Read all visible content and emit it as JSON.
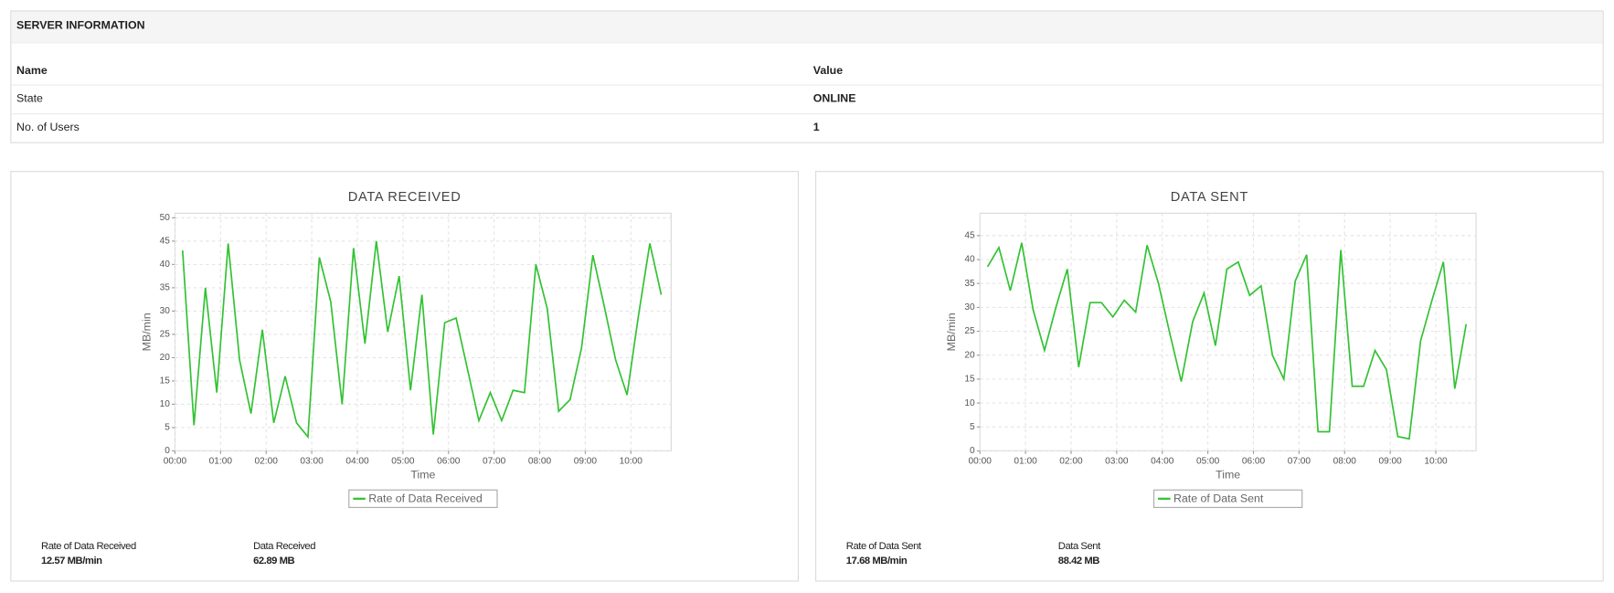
{
  "server_info": {
    "title": "SERVER INFORMATION",
    "header": [
      "Name",
      "Value"
    ],
    "rows": [
      [
        "State",
        "ONLINE"
      ],
      [
        "No. of Users",
        "1"
      ]
    ]
  },
  "chart_data": [
    {
      "type": "line",
      "title": "DATA RECEIVED",
      "x_label": "Time",
      "y_label": "MB/min",
      "x": [
        "00:10",
        "00:25",
        "00:40",
        "00:55",
        "01:10",
        "01:25",
        "01:40",
        "01:55",
        "02:10",
        "02:25",
        "02:40",
        "02:55",
        "03:10",
        "03:25",
        "03:40",
        "03:55",
        "04:10",
        "04:25",
        "04:40",
        "04:55",
        "05:10",
        "05:25",
        "05:40",
        "05:55",
        "06:10",
        "06:25",
        "06:40",
        "06:55",
        "07:10",
        "07:25",
        "07:40",
        "07:55",
        "08:10",
        "08:25",
        "08:40",
        "08:55",
        "09:10",
        "09:25",
        "09:40",
        "09:55",
        "10:10",
        "10:25",
        "10:40"
      ],
      "series": [
        {
          "name": "Rate of Data Received",
          "color": "#33c233",
          "values": [
            43,
            5.5,
            35,
            12.5,
            44.5,
            19.5,
            8,
            26,
            6,
            16,
            6,
            3,
            41.5,
            32,
            10,
            43.5,
            23,
            45,
            25.5,
            37.5,
            13,
            33.5,
            3.5,
            27.5,
            28.5,
            17.5,
            6.5,
            12.5,
            6.5,
            13,
            12.5,
            40,
            30.5,
            8.5,
            11,
            22,
            42,
            31,
            19.5,
            12,
            29,
            44.5,
            33.5
          ]
        }
      ],
      "xlim": [
        "00:00",
        "10:53"
      ],
      "xticks": [
        "00:00",
        "01:00",
        "02:00",
        "03:00",
        "04:00",
        "05:00",
        "06:00",
        "07:00",
        "08:00",
        "09:00",
        "10:00"
      ],
      "ylim": [
        0,
        51
      ],
      "yticks": [
        0,
        5,
        10,
        15,
        20,
        25,
        30,
        35,
        40,
        45,
        50
      ],
      "grid": true,
      "stats": [
        {
          "label": "Rate of Data Received",
          "value": "12.57 MB/min"
        },
        {
          "label": "Data Received",
          "value": "62.89 MB"
        }
      ]
    },
    {
      "type": "line",
      "title": "DATA SENT",
      "x_label": "Time",
      "y_label": "MB/min",
      "x": [
        "00:10",
        "00:25",
        "00:40",
        "00:55",
        "01:10",
        "01:25",
        "01:40",
        "01:55",
        "02:10",
        "02:25",
        "02:40",
        "02:55",
        "03:10",
        "03:25",
        "03:40",
        "03:55",
        "04:10",
        "04:25",
        "04:40",
        "04:55",
        "05:10",
        "05:25",
        "05:40",
        "05:55",
        "06:10",
        "06:25",
        "06:40",
        "06:55",
        "07:10",
        "07:25",
        "07:40",
        "07:55",
        "08:10",
        "08:25",
        "08:40",
        "08:55",
        "09:10",
        "09:25",
        "09:40",
        "09:55",
        "10:10",
        "10:25",
        "10:40"
      ],
      "series": [
        {
          "name": "Rate of Data Sent",
          "color": "#33c233",
          "values": [
            38.5,
            42.5,
            33.5,
            43.5,
            29.5,
            21,
            30,
            38,
            17.5,
            31,
            31,
            28,
            31.5,
            29,
            43,
            35,
            24.5,
            14.5,
            27,
            33,
            22,
            38,
            39.5,
            32.5,
            34.5,
            20,
            15,
            35.5,
            41,
            4,
            4,
            42,
            13.5,
            13.5,
            21,
            17,
            3,
            2.5,
            23,
            31.5,
            39.5,
            13,
            26.5
          ]
        }
      ],
      "xlim": [
        "00:00",
        "10:53"
      ],
      "xticks": [
        "00:00",
        "01:00",
        "02:00",
        "03:00",
        "04:00",
        "05:00",
        "06:00",
        "07:00",
        "08:00",
        "09:00",
        "10:00"
      ],
      "ylim": [
        0,
        49.7
      ],
      "yticks": [
        0,
        5,
        10,
        15,
        20,
        25,
        30,
        35,
        40,
        45
      ],
      "grid": true,
      "stats": [
        {
          "label": "Rate of Data Sent",
          "value": "17.68 MB/min"
        },
        {
          "label": "Data Sent",
          "value": "88.42 MB"
        }
      ]
    }
  ]
}
